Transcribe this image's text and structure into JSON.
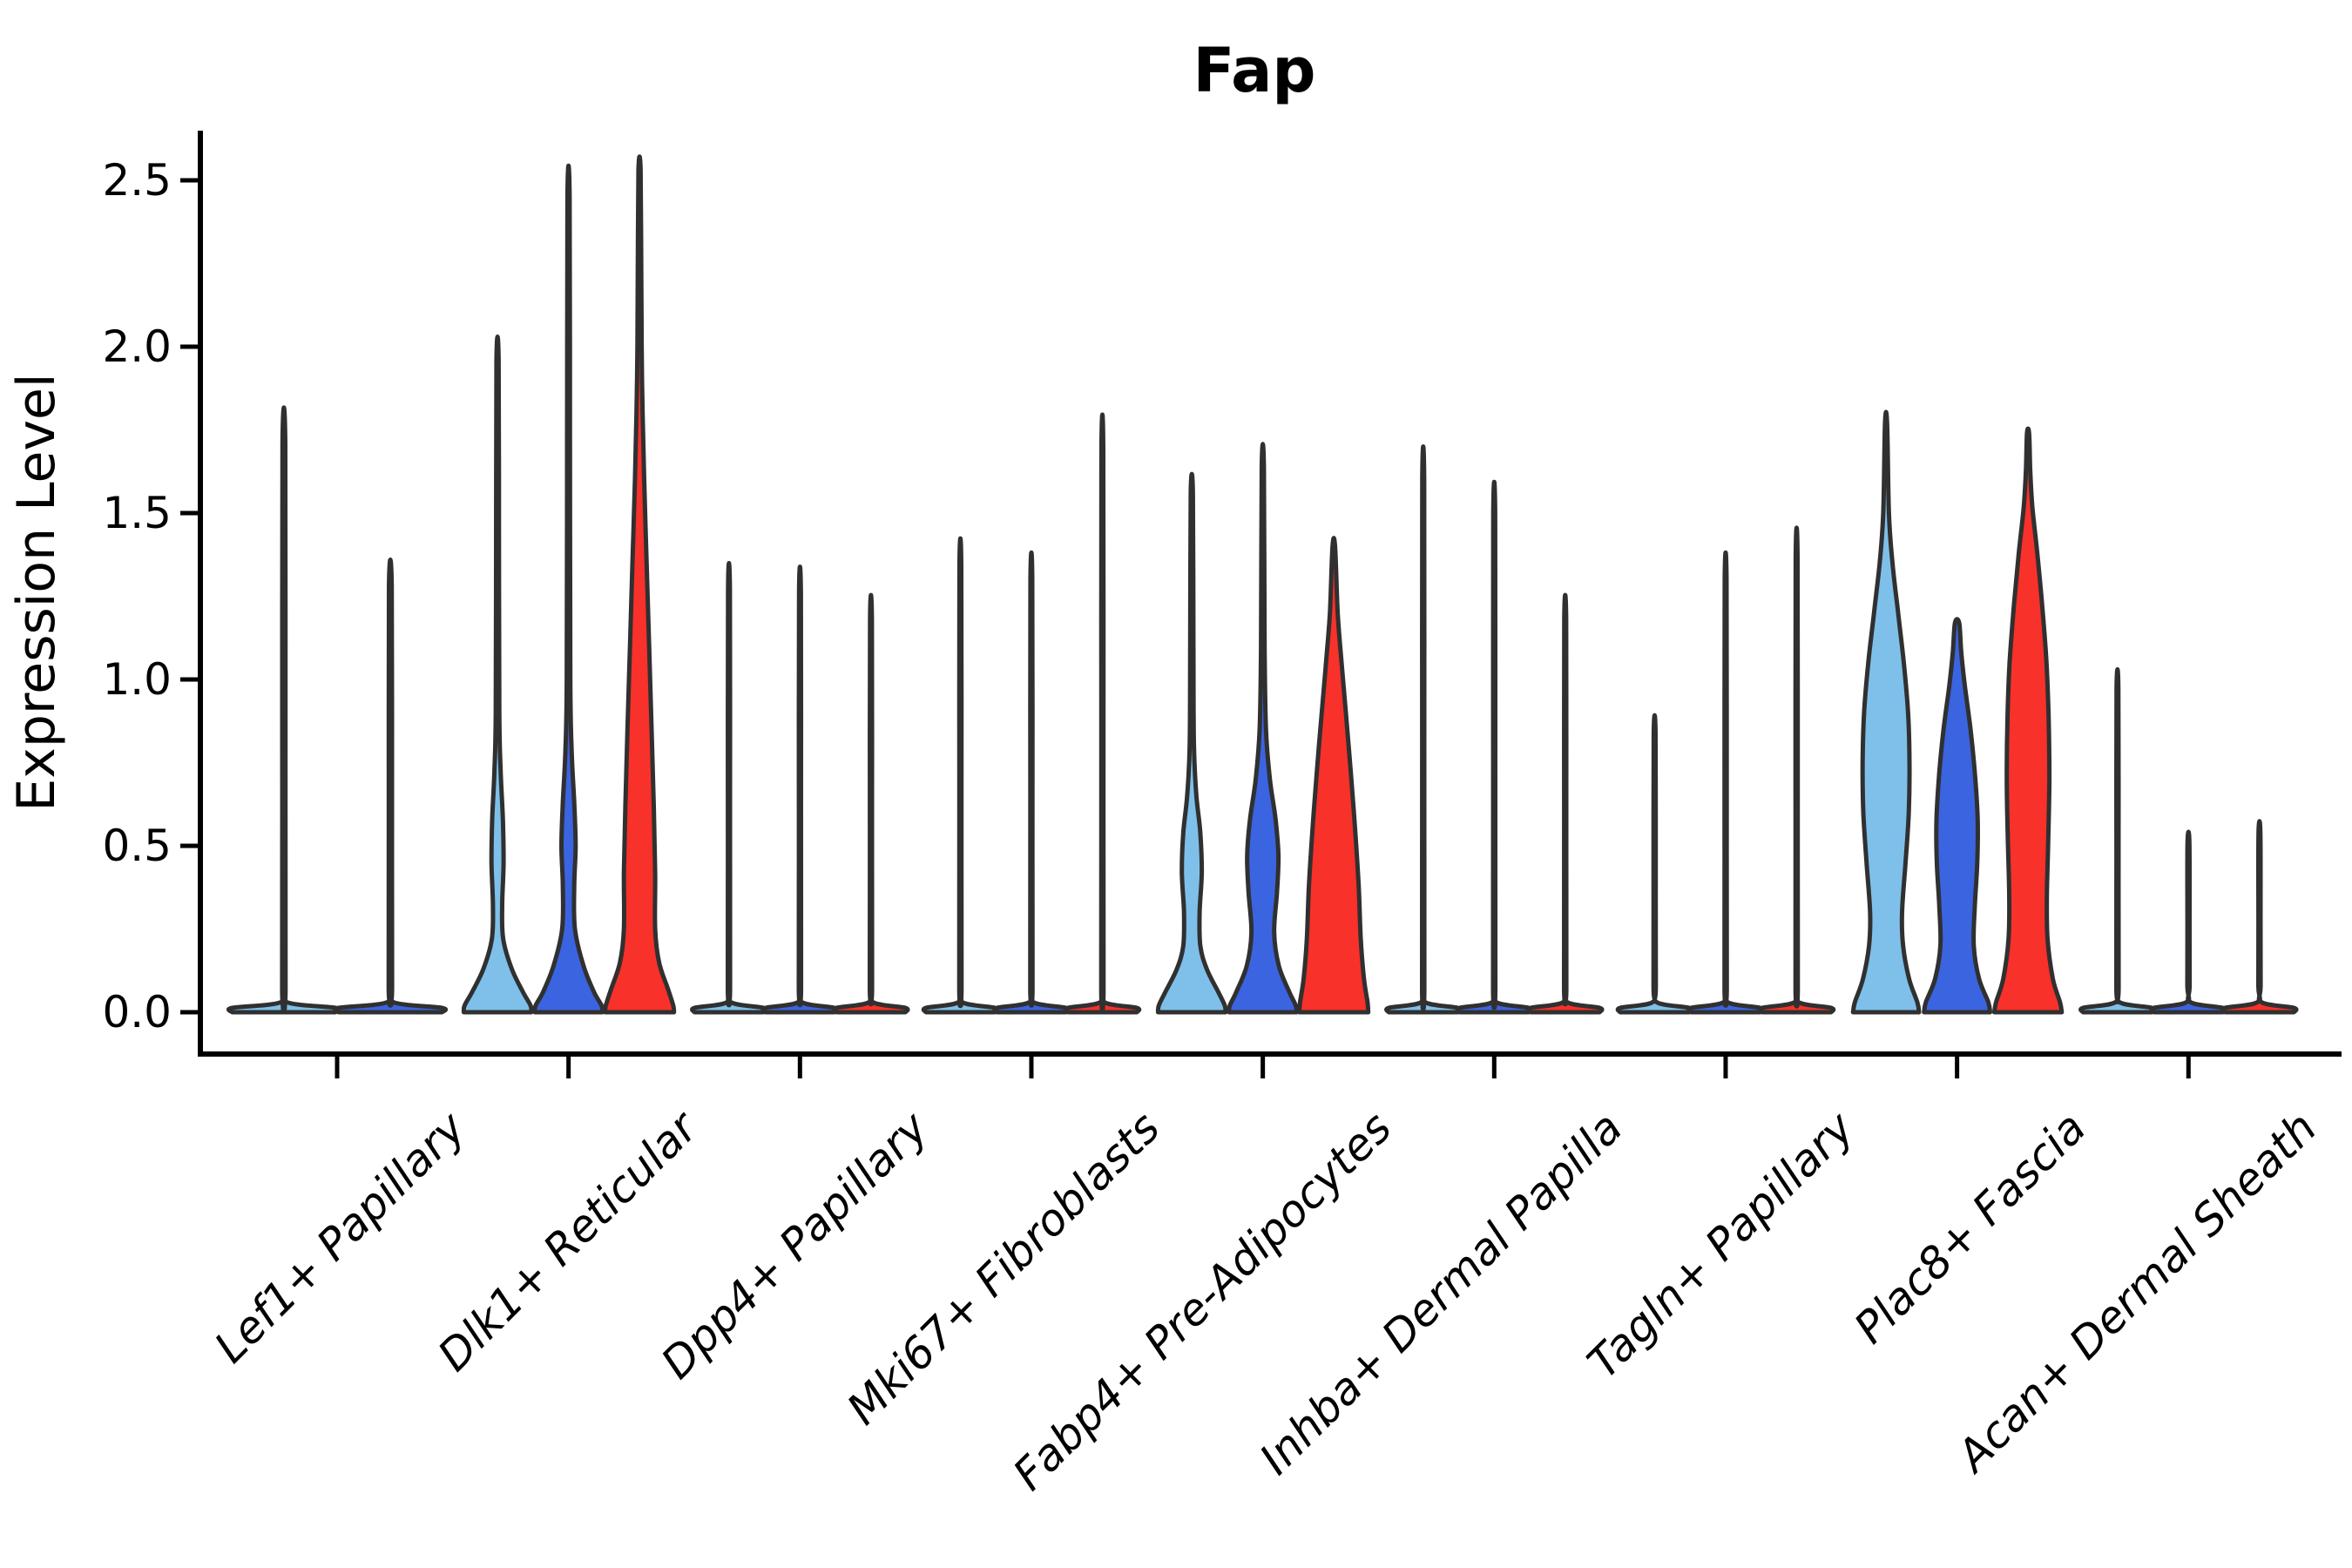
{
  "title": "Fap",
  "axes": {
    "ylabel": "Expression Level",
    "xlabel": ""
  },
  "colors": {
    "series_lightblue": "#7EC0EA",
    "series_blue": "#3B64E1",
    "series_red": "#F8312A",
    "violin_outline": "#303030",
    "axis_color": "#000000",
    "background": "#ffffff"
  },
  "chart_data": {
    "type": "violin",
    "title": "Fap",
    "ylabel": "Expression Level",
    "xlabel": "",
    "ylim": [
      -0.13,
      2.66
    ],
    "grid": false,
    "legend": "none",
    "yticks": [
      "0.0",
      "0.5",
      "1.0",
      "1.5",
      "2.0",
      "2.5"
    ],
    "ytick_values": [
      0.0,
      0.5,
      1.0,
      1.5,
      2.0,
      2.5
    ],
    "palette": [
      "#7EC0EA",
      "#3B64E1",
      "#F8312A"
    ],
    "groups": [
      {
        "label": "Lef1+ Papillary",
        "violins": [
          {
            "color": "#7EC0EA",
            "max": 1.71,
            "shape": "spike"
          },
          {
            "color": "#3B64E1",
            "max": 1.28,
            "shape": "spike"
          }
        ]
      },
      {
        "label": "Dlk1+ Reticular",
        "violins": [
          {
            "color": "#7EC0EA",
            "max": 1.96,
            "shape": "profile",
            "profile": [
              [
                0,
                0.95
              ],
              [
                0.02,
                0.93
              ],
              [
                0.06,
                0.72
              ],
              [
                0.13,
                0.4
              ],
              [
                0.22,
                0.16
              ],
              [
                0.32,
                0.13
              ],
              [
                0.45,
                0.17
              ],
              [
                0.58,
                0.15
              ],
              [
                0.72,
                0.09
              ],
              [
                0.9,
                0.05
              ],
              [
                1.4,
                0.04
              ],
              [
                1.96,
                0.03
              ]
            ]
          },
          {
            "color": "#3B64E1",
            "max": 2.45,
            "shape": "profile",
            "profile": [
              [
                0,
                0.95
              ],
              [
                0.02,
                0.93
              ],
              [
                0.06,
                0.72
              ],
              [
                0.14,
                0.42
              ],
              [
                0.25,
                0.18
              ],
              [
                0.38,
                0.16
              ],
              [
                0.5,
                0.2
              ],
              [
                0.63,
                0.16
              ],
              [
                0.78,
                0.09
              ],
              [
                1.0,
                0.05
              ],
              [
                1.7,
                0.04
              ],
              [
                2.45,
                0.03
              ]
            ]
          },
          {
            "color": "#F8312A",
            "max": 2.53,
            "shape": "profile",
            "profile": [
              [
                0,
                0.97
              ],
              [
                0.02,
                0.95
              ],
              [
                0.07,
                0.8
              ],
              [
                0.15,
                0.55
              ],
              [
                0.25,
                0.44
              ],
              [
                0.42,
                0.44
              ],
              [
                0.62,
                0.4
              ],
              [
                0.85,
                0.34
              ],
              [
                1.1,
                0.27
              ],
              [
                1.35,
                0.2
              ],
              [
                1.6,
                0.13
              ],
              [
                1.9,
                0.07
              ],
              [
                2.2,
                0.05
              ],
              [
                2.53,
                0.03
              ]
            ]
          }
        ]
      },
      {
        "label": "Dpp4+ Papillary",
        "violins": [
          {
            "color": "#7EC0EA",
            "max": 1.27,
            "shape": "spike"
          },
          {
            "color": "#3B64E1",
            "max": 1.26,
            "shape": "spike"
          },
          {
            "color": "#F8312A",
            "max": 1.18,
            "shape": "spike"
          }
        ]
      },
      {
        "label": "Mki67+ Fibroblasts",
        "violins": [
          {
            "color": "#7EC0EA",
            "max": 1.34,
            "shape": "spike"
          },
          {
            "color": "#3B64E1",
            "max": 1.3,
            "shape": "spike"
          },
          {
            "color": "#F8312A",
            "max": 1.69,
            "shape": "spike"
          }
        ]
      },
      {
        "label": "Fabp4+ Pre-Adipocytes",
        "violins": [
          {
            "color": "#7EC0EA",
            "max": 1.56,
            "shape": "profile",
            "profile": [
              [
                0,
                0.95
              ],
              [
                0.02,
                0.93
              ],
              [
                0.06,
                0.75
              ],
              [
                0.13,
                0.42
              ],
              [
                0.2,
                0.24
              ],
              [
                0.3,
                0.22
              ],
              [
                0.42,
                0.28
              ],
              [
                0.54,
                0.24
              ],
              [
                0.65,
                0.13
              ],
              [
                0.8,
                0.06
              ],
              [
                1.1,
                0.045
              ],
              [
                1.56,
                0.03
              ]
            ]
          },
          {
            "color": "#3B64E1",
            "max": 1.64,
            "shape": "profile",
            "profile": [
              [
                0,
                0.95
              ],
              [
                0.02,
                0.93
              ],
              [
                0.06,
                0.75
              ],
              [
                0.14,
                0.45
              ],
              [
                0.24,
                0.32
              ],
              [
                0.36,
                0.4
              ],
              [
                0.47,
                0.44
              ],
              [
                0.58,
                0.36
              ],
              [
                0.7,
                0.2
              ],
              [
                0.85,
                0.09
              ],
              [
                1.1,
                0.05
              ],
              [
                1.64,
                0.03
              ]
            ]
          },
          {
            "color": "#F8312A",
            "max": 1.4,
            "shape": "profile",
            "profile": [
              [
                0,
                0.97
              ],
              [
                0.03,
                0.95
              ],
              [
                0.1,
                0.85
              ],
              [
                0.22,
                0.76
              ],
              [
                0.38,
                0.7
              ],
              [
                0.55,
                0.6
              ],
              [
                0.72,
                0.48
              ],
              [
                0.9,
                0.34
              ],
              [
                1.05,
                0.22
              ],
              [
                1.2,
                0.11
              ],
              [
                1.4,
                0.035
              ]
            ]
          }
        ]
      },
      {
        "label": "Inhba+ Dermal Papilla",
        "violins": [
          {
            "color": "#7EC0EA",
            "max": 1.6,
            "shape": "spike"
          },
          {
            "color": "#3B64E1",
            "max": 1.5,
            "shape": "spike"
          },
          {
            "color": "#F8312A",
            "max": 1.18,
            "shape": "spike"
          }
        ]
      },
      {
        "label": "Tagln+ Papillary",
        "violins": [
          {
            "color": "#7EC0EA",
            "max": 0.84,
            "shape": "spike"
          },
          {
            "color": "#3B64E1",
            "max": 1.3,
            "shape": "spike"
          },
          {
            "color": "#F8312A",
            "max": 1.37,
            "shape": "spike"
          }
        ]
      },
      {
        "label": "Plac8+ Fascia",
        "violins": [
          {
            "color": "#7EC0EA",
            "max": 1.77,
            "shape": "profile",
            "profile": [
              [
                0,
                0.93
              ],
              [
                0.03,
                0.88
              ],
              [
                0.1,
                0.65
              ],
              [
                0.2,
                0.48
              ],
              [
                0.3,
                0.45
              ],
              [
                0.45,
                0.55
              ],
              [
                0.6,
                0.64
              ],
              [
                0.75,
                0.66
              ],
              [
                0.9,
                0.62
              ],
              [
                1.05,
                0.5
              ],
              [
                1.2,
                0.34
              ],
              [
                1.35,
                0.18
              ],
              [
                1.5,
                0.08
              ],
              [
                1.77,
                0.03
              ]
            ]
          },
          {
            "color": "#3B64E1",
            "max": 1.17,
            "shape": "profile",
            "profile": [
              [
                0,
                0.93
              ],
              [
                0.03,
                0.88
              ],
              [
                0.1,
                0.62
              ],
              [
                0.2,
                0.47
              ],
              [
                0.32,
                0.5
              ],
              [
                0.45,
                0.57
              ],
              [
                0.58,
                0.58
              ],
              [
                0.72,
                0.5
              ],
              [
                0.85,
                0.38
              ],
              [
                0.98,
                0.22
              ],
              [
                1.08,
                0.12
              ],
              [
                1.17,
                0.06
              ]
            ]
          },
          {
            "color": "#F8312A",
            "max": 1.74,
            "shape": "profile",
            "profile": [
              [
                0,
                0.95
              ],
              [
                0.03,
                0.9
              ],
              [
                0.1,
                0.7
              ],
              [
                0.22,
                0.55
              ],
              [
                0.35,
                0.53
              ],
              [
                0.52,
                0.57
              ],
              [
                0.7,
                0.6
              ],
              [
                0.88,
                0.58
              ],
              [
                1.05,
                0.52
              ],
              [
                1.22,
                0.4
              ],
              [
                1.38,
                0.26
              ],
              [
                1.52,
                0.12
              ],
              [
                1.63,
                0.06
              ],
              [
                1.74,
                0.03
              ]
            ]
          }
        ]
      },
      {
        "label": "Acan+ Dermal Sheath",
        "violins": [
          {
            "color": "#7EC0EA",
            "max": 0.97,
            "shape": "spike"
          },
          {
            "color": "#3B64E1",
            "max": 0.51,
            "shape": "spike"
          },
          {
            "color": "#F8312A",
            "max": 0.54,
            "shape": "spike"
          }
        ]
      }
    ]
  }
}
